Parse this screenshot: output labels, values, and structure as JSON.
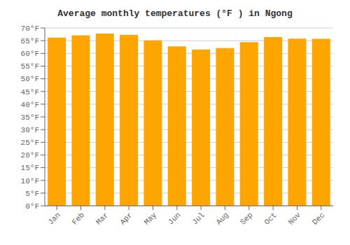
{
  "chart_data": {
    "type": "bar",
    "title": "Average monthly temperatures (°F ) in Ngong",
    "categories": [
      "Jan",
      "Feb",
      "Mar",
      "Apr",
      "May",
      "Jun",
      "Jul",
      "Aug",
      "Sep",
      "Oct",
      "Nov",
      "Dec"
    ],
    "values": [
      66.2,
      67.1,
      67.8,
      67.3,
      65.1,
      62.8,
      61.5,
      62.1,
      64.4,
      66.4,
      65.8,
      65.7
    ],
    "color": "#FFA500",
    "ylim": [
      0,
      70
    ],
    "yticks": [
      {
        "value": 0,
        "label": "0°F"
      },
      {
        "value": 5,
        "label": "5°F"
      },
      {
        "value": 10,
        "label": "10°F"
      },
      {
        "value": 15,
        "label": "15°F"
      },
      {
        "value": 20,
        "label": "20°F"
      },
      {
        "value": 25,
        "label": "25°F"
      },
      {
        "value": 30,
        "label": "30°F"
      },
      {
        "value": 35,
        "label": "35°F"
      },
      {
        "value": 40,
        "label": "40°F"
      },
      {
        "value": 45,
        "label": "45°F"
      },
      {
        "value": 50,
        "label": "50°F"
      },
      {
        "value": 55,
        "label": "55°F"
      },
      {
        "value": 60,
        "label": "60°F"
      },
      {
        "value": 65,
        "label": "65°F"
      },
      {
        "value": 70,
        "label": "70°F"
      }
    ],
    "grid": true
  }
}
